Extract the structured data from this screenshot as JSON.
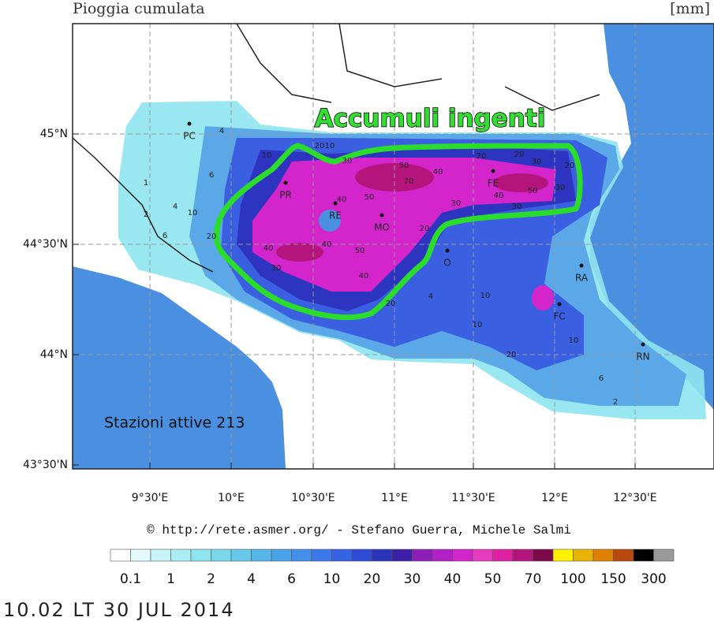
{
  "header": {
    "title": "Pioggia cumulata",
    "unit": "[mm]"
  },
  "map": {
    "lat_labels": [
      "45°N",
      "44°30'N",
      "44°N",
      "43°30'N"
    ],
    "lon_labels": [
      "9°30'E",
      "10°E",
      "10°30'E",
      "11°E",
      "11°30'E",
      "12°E",
      "12°30'E"
    ],
    "annotation": "Accumuli ingenti",
    "stations": "Stazioni attive 213",
    "cities": [
      "PC",
      "PR",
      "RE",
      "MO",
      "FE",
      "O",
      "RA",
      "FC",
      "RN"
    ],
    "contour_labels": [
      "10",
      "20",
      "6",
      "4",
      "2",
      "1",
      "4",
      "6",
      "10",
      "20",
      "30",
      "40",
      "50",
      "70",
      "50",
      "40",
      "40",
      "50",
      "30",
      "20",
      "30",
      "20",
      "30",
      "40",
      "50",
      "40",
      "30",
      "40",
      "30",
      "20",
      "10",
      "20",
      "10",
      "6",
      "2",
      "4",
      "20",
      "10",
      "20",
      "10"
    ]
  },
  "credit": "© http://rete.asmer.org/ - Stefano Guerra, Michele Salmi",
  "colorbar": {
    "colors": [
      "#ffffff",
      "#e4fafc",
      "#c8f4f8",
      "#aaedf4",
      "#8ee4ee",
      "#78d8ea",
      "#66c8e8",
      "#56b6e8",
      "#4aa2e8",
      "#428eea",
      "#3c78ea",
      "#3662e4",
      "#2f4ad6",
      "#2a34b8",
      "#3c20a8",
      "#8c1eb8",
      "#b420c8",
      "#d424cc",
      "#e83cc0",
      "#e020a0",
      "#b4147c",
      "#7c0a48",
      "#fff200",
      "#e8b400",
      "#e08000",
      "#b84a10",
      "#000000",
      "#999999"
    ],
    "labels": [
      "0.1",
      "1",
      "2",
      "4",
      "6",
      "10",
      "20",
      "30",
      "40",
      "50",
      "70",
      "100",
      "150",
      "300"
    ]
  },
  "timestamp": "10.02 LT 30 JUL 2014"
}
